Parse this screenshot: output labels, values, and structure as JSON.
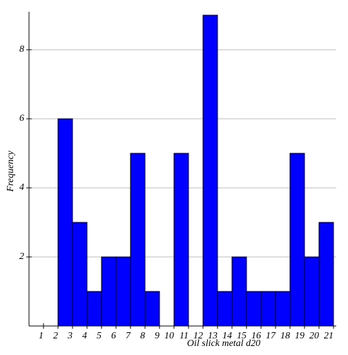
{
  "chart_data": {
    "type": "histogram",
    "x_label": "Oil slick metal d20",
    "y_label": "Frequency",
    "bins": [
      1,
      2,
      3,
      4,
      5,
      6,
      7,
      8,
      9,
      10,
      11,
      12,
      13,
      14,
      15,
      16,
      17,
      18,
      19,
      20,
      21
    ],
    "values": [
      0,
      6,
      3,
      1,
      2,
      2,
      5,
      1,
      0,
      5,
      0,
      9,
      1,
      2,
      1,
      1,
      1,
      5,
      2,
      3
    ],
    "color": "#0000ff",
    "xlim": [
      0,
      21
    ],
    "xticks": [
      1,
      2,
      3,
      4,
      5,
      6,
      7,
      8,
      9,
      10,
      11,
      12,
      13,
      14,
      15,
      16,
      17,
      18,
      19,
      20,
      21
    ],
    "ylim": [
      0,
      9.1
    ],
    "yticks": [
      2,
      4,
      6,
      8
    ],
    "grid": true
  }
}
